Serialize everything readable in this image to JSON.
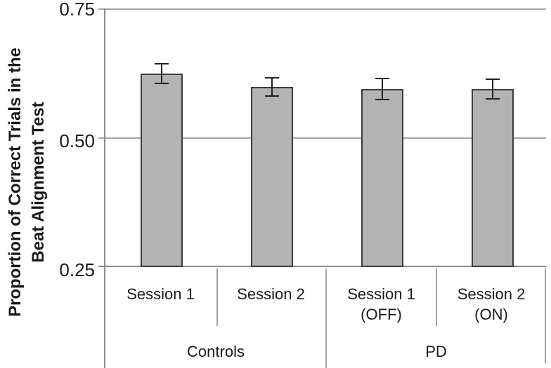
{
  "figure": {
    "background": "#ffffff"
  },
  "chart_data": {
    "type": "bar",
    "title": "",
    "ylabel": "Proportion of Correct Trials in the Beat Alignment Test",
    "ylabel_lines": [
      "Proportion of Correct Trials in the",
      "Beat Alignment Test"
    ],
    "ylim": [
      0.25,
      0.75
    ],
    "yticks": [
      {
        "value": 0.25,
        "label": "0.25"
      },
      {
        "value": 0.5,
        "label": "0.50"
      },
      {
        "value": 0.75,
        "label": "0.75"
      }
    ],
    "grid": true,
    "legend_position": "none",
    "categories": [
      {
        "lines": [
          "Session 1"
        ]
      },
      {
        "lines": [
          "Session 2"
        ]
      },
      {
        "lines": [
          "Session 1",
          "(OFF)"
        ]
      },
      {
        "lines": [
          "Session 2",
          "(ON)"
        ]
      }
    ],
    "groups": [
      {
        "label": "Controls",
        "span": 2
      },
      {
        "label": "PD",
        "span": 2
      }
    ],
    "series": [
      {
        "name": "Proportion of correct trials",
        "values": [
          0.625,
          0.599,
          0.595,
          0.595
        ],
        "errors": [
          0.019,
          0.018,
          0.02,
          0.019
        ]
      }
    ],
    "colors": {
      "bar_fill": "#b3b3b3",
      "bar_border": "#3d3d3d",
      "error_bar": "#1f1f1f",
      "gridline": "#a6a6a6",
      "axis": "#8c8c8c",
      "text": "#1a1a1a"
    }
  }
}
